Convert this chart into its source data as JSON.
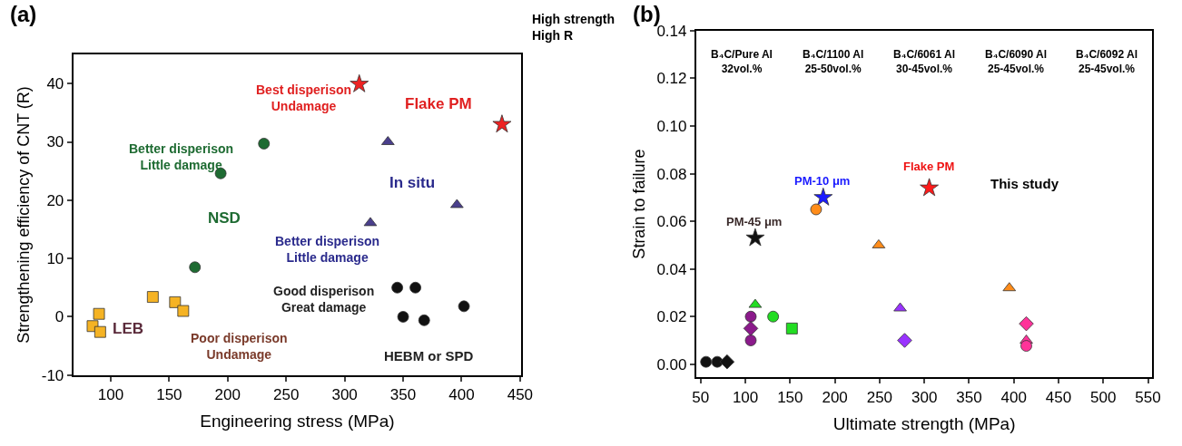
{
  "chart_data": [
    {
      "type": "scatter",
      "title": "(a)",
      "xlabel": "Engineering stress (MPa)",
      "ylabel": "Strengthening efficiency of CNT (R)",
      "xlim": [
        68,
        451
      ],
      "xticks": [
        100,
        150,
        200,
        250,
        300,
        350,
        400,
        450
      ],
      "ylim": [
        -10,
        45
      ],
      "yticks": [
        -10,
        0,
        10,
        20,
        30,
        40
      ],
      "series": [
        {
          "color": "#f5b324",
          "marker": "square",
          "x": [
            90,
            84.5,
            91,
            136,
            155,
            162
          ],
          "values": [
            0.5,
            -1.6,
            -2.6,
            3.4,
            2.5,
            1.0
          ]
        },
        {
          "color": "#1e6b32",
          "marker": "circle",
          "x": [
            172,
            194,
            231
          ],
          "values": [
            8.5,
            24.6,
            29.7
          ]
        },
        {
          "color": "#4a3f8c",
          "marker": "triangle",
          "x": [
            322,
            337,
            396
          ],
          "values": [
            16.1,
            30,
            19.2
          ]
        },
        {
          "color": "#ee2222",
          "marker": "star",
          "x": [
            312.5,
            434.5
          ],
          "values": [
            39.9,
            33
          ]
        },
        {
          "color": "#111111",
          "marker": "circle",
          "x": [
            345,
            360.5,
            402,
            350,
            368
          ],
          "values": [
            5.0,
            5.0,
            1.8,
            0,
            -0.6
          ]
        }
      ],
      "annotations": [
        "High strength\nHigh R",
        "LEB",
        "NSD",
        "In situ",
        "Flake PM",
        "HEBM or SPD",
        "Best disperison\nUndamage",
        "Better disperison\nLittle damage",
        "Better disperison\nLittle damage",
        "Good disperison\nGreat damage",
        "Poor disperison\nUndamage"
      ]
    },
    {
      "type": "scatter",
      "title": "(b)",
      "xlabel": "Ultimate strength (MPa)",
      "ylabel": "Strain to failure",
      "xlim": [
        45,
        555
      ],
      "xticks": [
        50,
        100,
        150,
        200,
        250,
        300,
        350,
        400,
        450,
        500,
        550
      ],
      "ylim": [
        -0.0055,
        0.14
      ],
      "yticks": [
        {
          "value": 0.0,
          "label": "0.00"
        },
        {
          "value": 0.02,
          "label": "0.02"
        },
        {
          "value": 0.04,
          "label": "0.04"
        },
        {
          "value": 0.06,
          "label": "0.06"
        },
        {
          "value": 0.08,
          "label": "0.08"
        },
        {
          "value": 0.1,
          "label": "0.10"
        },
        {
          "value": 0.12,
          "label": "0.12"
        },
        {
          "value": 0.14,
          "label": "0.14"
        }
      ],
      "series": [
        {
          "color": "#ff1a1a",
          "marker": "star",
          "x": [
            305.5
          ],
          "values": [
            0.074
          ]
        },
        {
          "color": "#1a1aff",
          "marker": "star",
          "x": [
            187
          ],
          "values": [
            0.07
          ]
        },
        {
          "color": "#111111",
          "marker": "star",
          "x": [
            111
          ],
          "values": [
            0.053
          ]
        },
        {
          "color": "#22dd22",
          "marker": "triangle",
          "x": [
            111
          ],
          "values": [
            0.025
          ]
        },
        {
          "color": "#22dd22",
          "marker": "circle",
          "x": [
            131
          ],
          "values": [
            0.02
          ]
        },
        {
          "color": "#22dd22",
          "marker": "square",
          "x": [
            152
          ],
          "values": [
            0.015
          ]
        },
        {
          "color": "#111111",
          "marker": "circle",
          "x": [
            56,
            68.5
          ],
          "values": [
            0.001,
            0.001
          ]
        },
        {
          "color": "#111111",
          "marker": "diamond",
          "x": [
            79.5
          ],
          "values": [
            0.001
          ]
        },
        {
          "color": "#9933ff",
          "marker": "triangle",
          "x": [
            273
          ],
          "values": [
            0.0235
          ]
        },
        {
          "color": "#9933ff",
          "marker": "diamond",
          "x": [
            278
          ],
          "values": [
            0.01
          ]
        },
        {
          "color": "#ff8c1a",
          "marker": "circle",
          "x": [
            179
          ],
          "values": [
            0.065
          ]
        },
        {
          "color": "#ff8c1a",
          "marker": "triangle",
          "x": [
            249,
            395
          ],
          "values": [
            0.05,
            0.032
          ]
        },
        {
          "color": "#8b1a8b",
          "marker": "circle",
          "x": [
            106,
            106
          ],
          "values": [
            0.02,
            0.01
          ]
        },
        {
          "color": "#8b1a8b",
          "marker": "diamond",
          "x": [
            106
          ],
          "values": [
            0.015
          ]
        },
        {
          "color": "#ff3399",
          "marker": "diamond",
          "x": [
            414
          ],
          "values": [
            0.017
          ]
        },
        {
          "color": "#ff3399",
          "marker": "triangle",
          "x": [
            414
          ],
          "values": [
            0.01
          ]
        },
        {
          "color": "#ff3399",
          "marker": "circle",
          "x": [
            414
          ],
          "values": [
            0.0077
          ]
        }
      ],
      "annotations": [
        "B₄C/Pure Al\n32vol.%",
        "B₄C/1100 Al\n25-50vol.%",
        "B₄C/6061 Al\n30-45vol.%",
        "B₄C/6090 Al\n25-45vol.%",
        "B₄C/6092 Al\n25-45vol.%",
        "Flake PM",
        "PM-10 μm",
        "PM-45 μm",
        "This study"
      ]
    }
  ]
}
